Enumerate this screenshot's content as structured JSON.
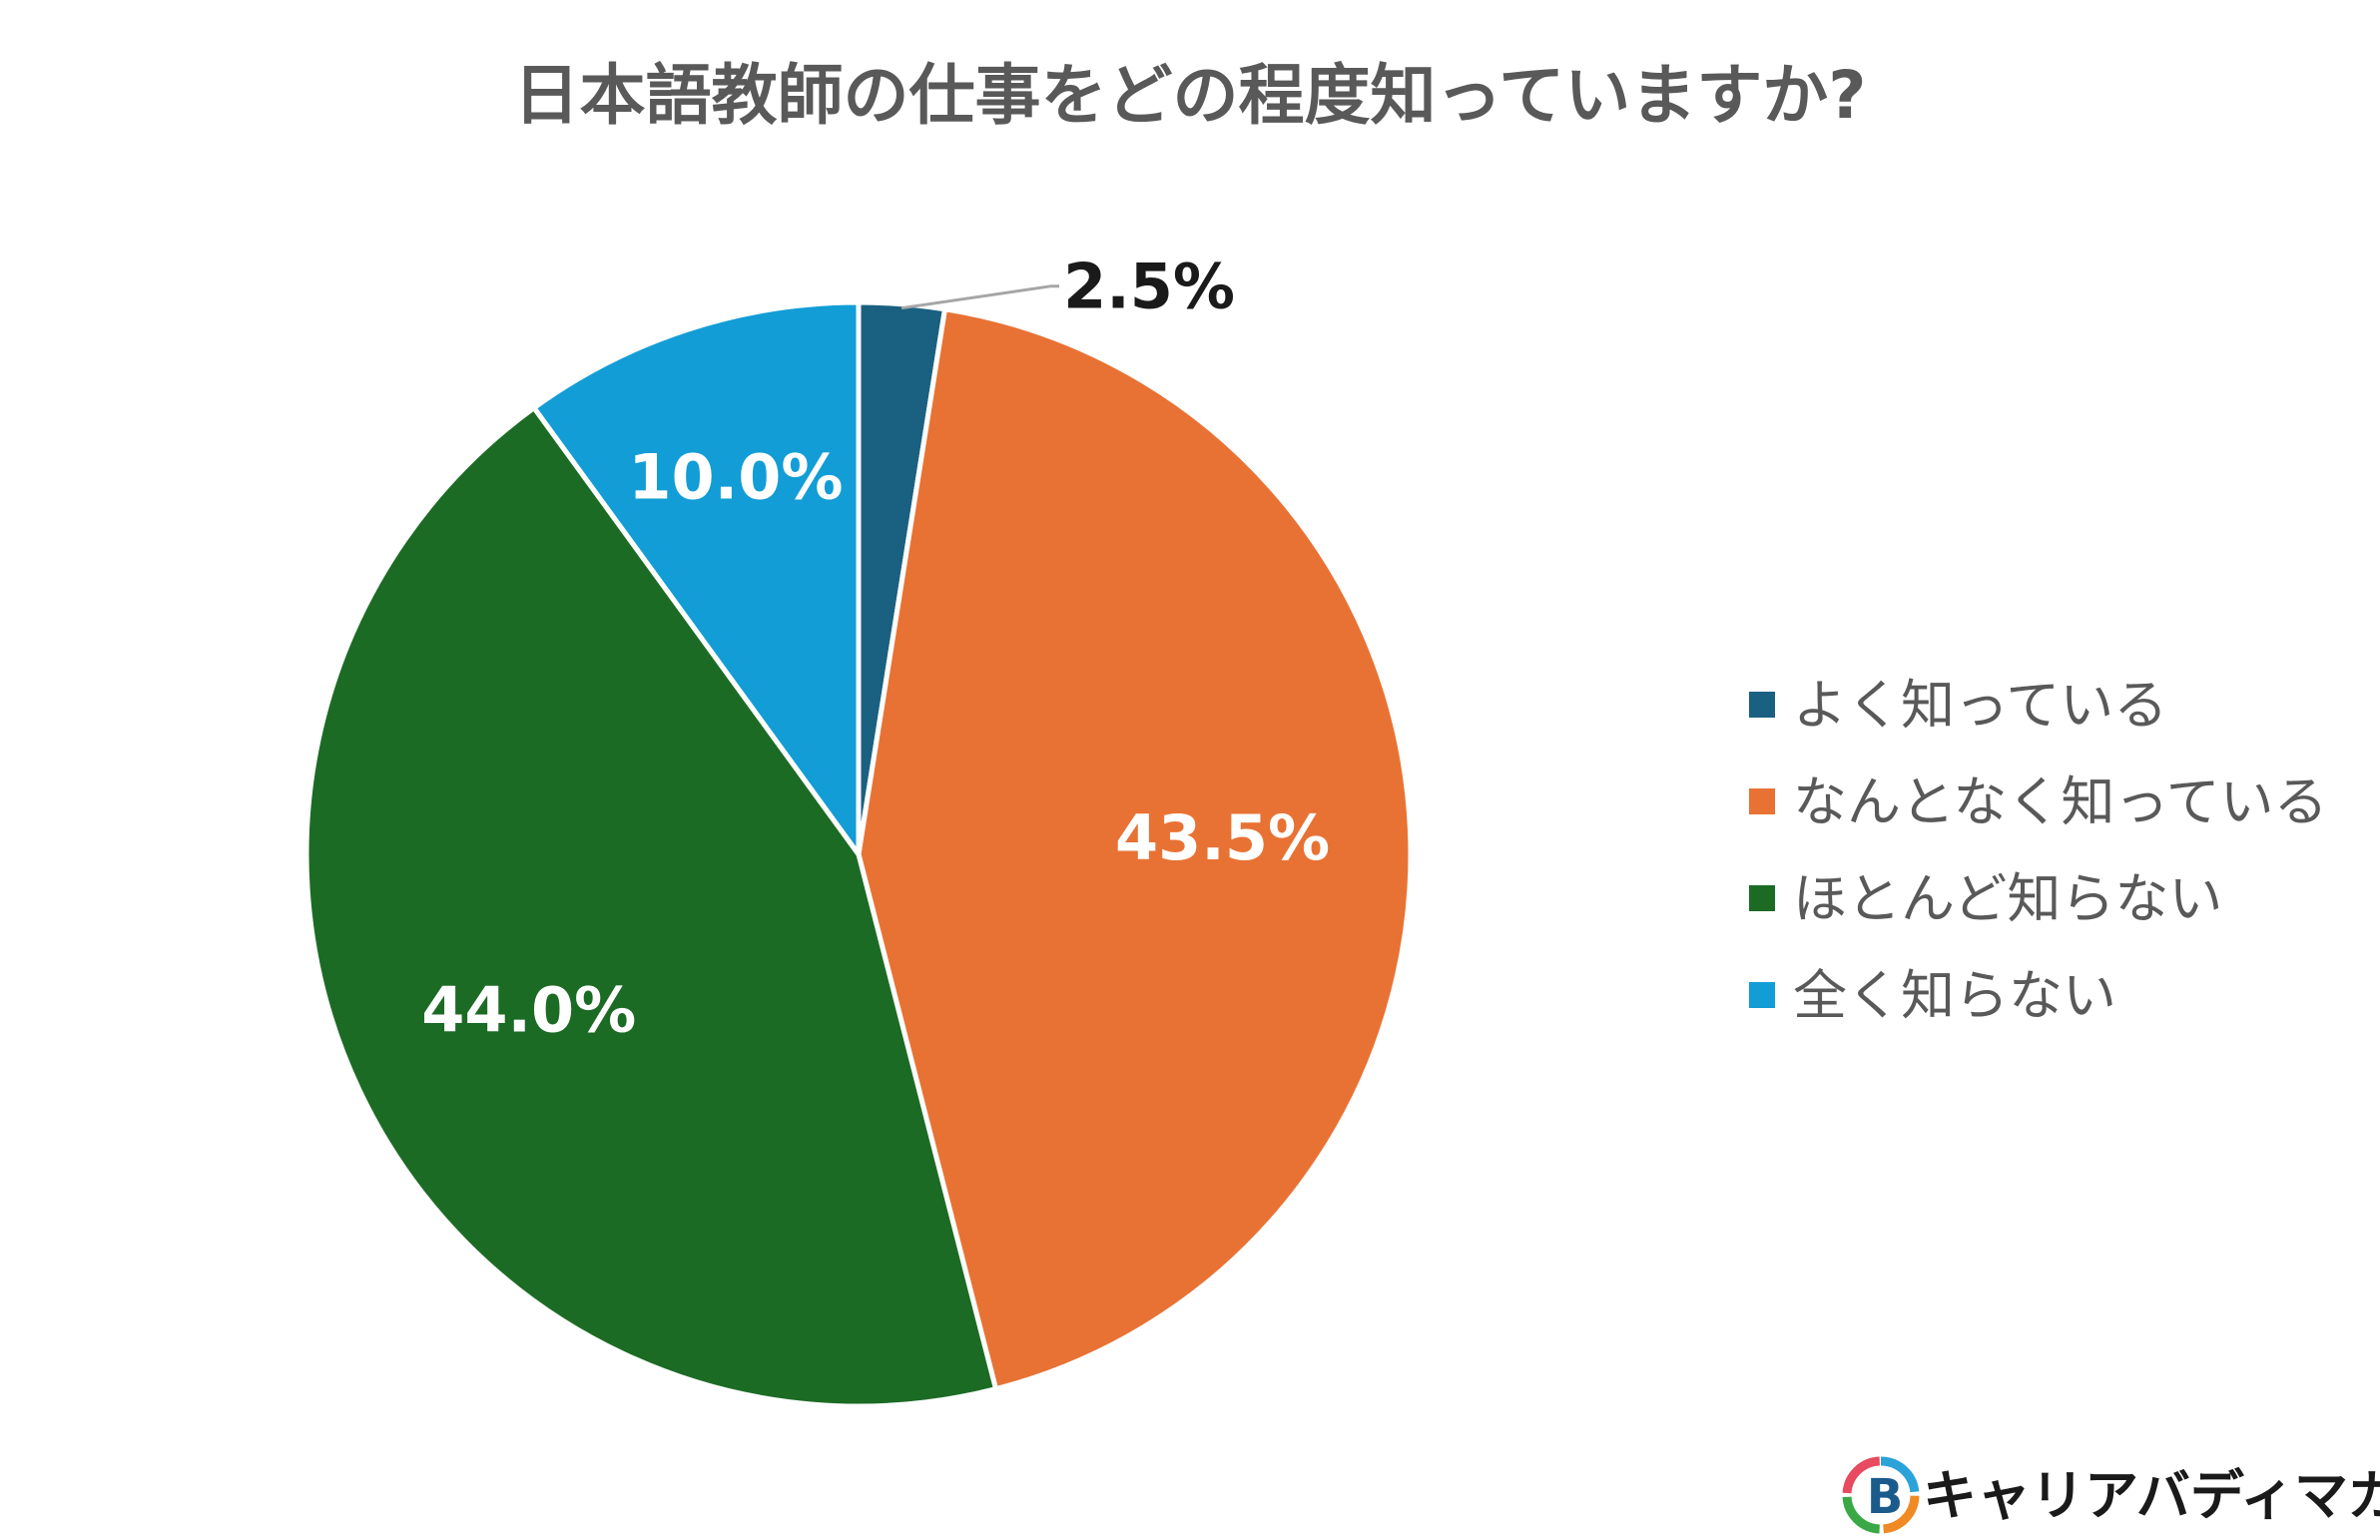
{
  "chart_data": {
    "type": "pie",
    "title": "日本語教師の仕事をどの程度知っていますか?",
    "categories": [
      "よく知っている",
      "なんとなく知っている",
      "ほとんど知らない",
      "全く知らない"
    ],
    "values": [
      2.5,
      43.5,
      44.0,
      10.0
    ],
    "labels": [
      "2.5%",
      "43.5%",
      "44.0%",
      "10.0%"
    ],
    "colors": [
      "#1A6080",
      "#E87234",
      "#1C6B25",
      "#129DD6"
    ],
    "label_colors": [
      "#1a1a1a",
      "#ffffff",
      "#ffffff",
      "#ffffff"
    ],
    "start_angle_deg": 0,
    "direction": "clockwise",
    "legend_position": "right"
  },
  "brand": {
    "name": "キャリアバディマガジン",
    "logo_icon": "career-buddy-logo-icon"
  }
}
